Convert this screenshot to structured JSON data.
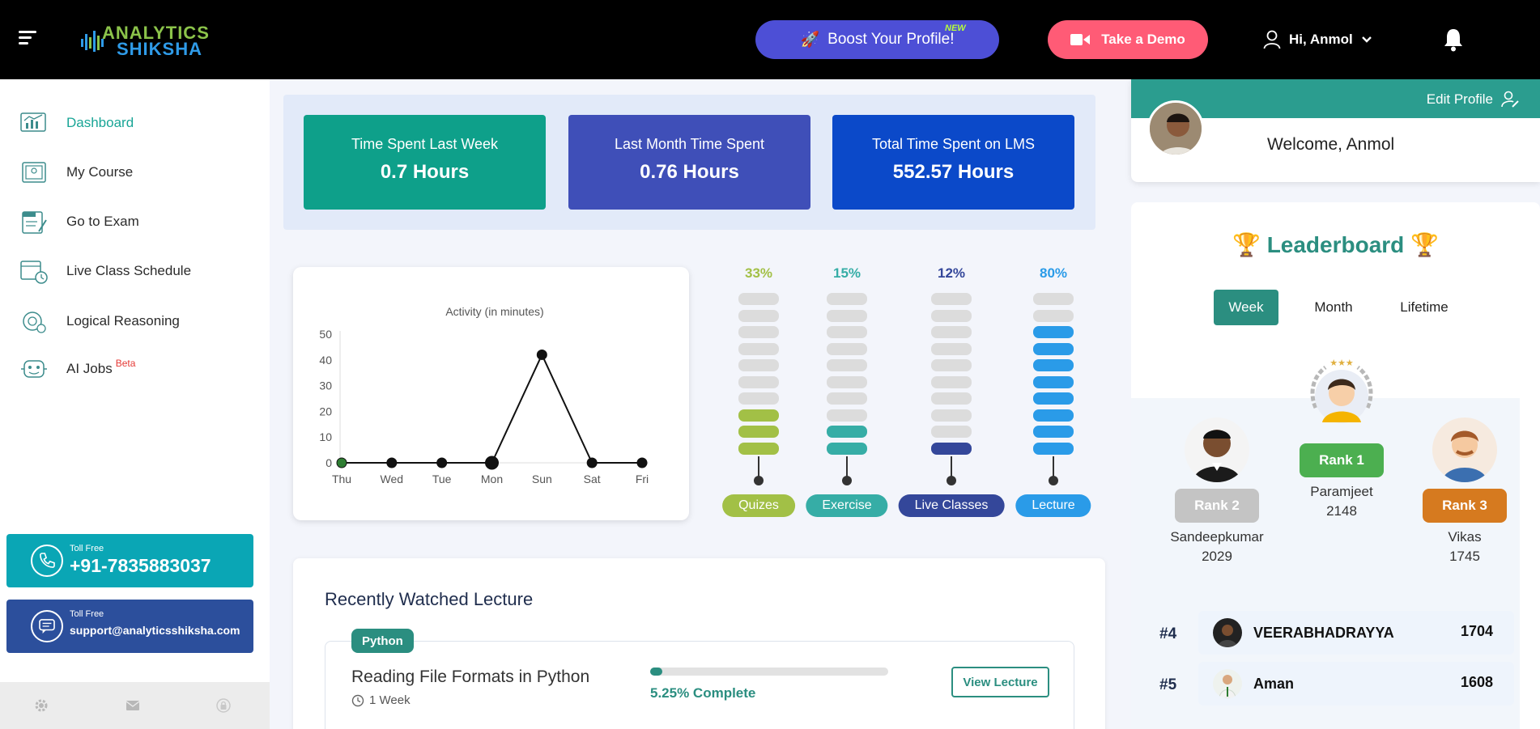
{
  "header": {
    "logo_line1": "ANALYTICS",
    "logo_line2": "SHIKSHA",
    "boost_label": "Boost Your Profile!",
    "boost_icon": "🚀",
    "new_badge": "NEW",
    "demo_label": "Take a Demo",
    "greeting": "Hi, Anmol"
  },
  "sidebar": {
    "items": [
      {
        "label": "Dashboard",
        "icon": "dashboard-icon"
      },
      {
        "label": "My Course",
        "icon": "course-icon"
      },
      {
        "label": "Go to Exam",
        "icon": "exam-icon"
      },
      {
        "label": "Live Class Schedule",
        "icon": "calendar-icon"
      },
      {
        "label": "Logical Reasoning",
        "icon": "brain-icon"
      },
      {
        "label": "AI Jobs",
        "icon": "robot-icon",
        "badge": "Beta"
      }
    ],
    "phone": {
      "small": "Toll Free",
      "value": "+91-7835883037"
    },
    "mail": {
      "small": "Toll Free",
      "value": "support@analyticsshiksha.com"
    }
  },
  "time_stats": [
    {
      "title": "Time Spent Last Week",
      "value": "0.7 Hours",
      "color": "#0ea08a"
    },
    {
      "title": "Last Month Time Spent",
      "value": "0.76 Hours",
      "color": "#3f4fb8"
    },
    {
      "title": "Total Time Spent on LMS",
      "value": "552.57 Hours",
      "color": "#0b49c9"
    }
  ],
  "chart_data": {
    "type": "line",
    "title": "Activity (in minutes)",
    "categories": [
      "Thu",
      "Wed",
      "Tue",
      "Mon",
      "Sun",
      "Sat",
      "Fri"
    ],
    "values": [
      0,
      0,
      0,
      0,
      42,
      0,
      0
    ],
    "ylim": [
      0,
      50
    ],
    "yticks": [
      0,
      10,
      20,
      30,
      40,
      50
    ],
    "grid": false
  },
  "progress": [
    {
      "label": "Quizes",
      "percent": "33%",
      "filled": 3,
      "color": "#a2c046"
    },
    {
      "label": "Exercise",
      "percent": "15%",
      "filled": 2,
      "color": "#36ada6"
    },
    {
      "label": "Live Classes",
      "percent": "12%",
      "filled": 1,
      "color": "#34479a"
    },
    {
      "label": "Lecture",
      "percent": "80%",
      "filled": 8,
      "color": "#2a9be8"
    }
  ],
  "recent": {
    "title": "Recently Watched Lecture",
    "tag": "Python",
    "name": "Reading File Formats in Python",
    "duration": "1 Week",
    "progress_text": "5.25% Complete",
    "progress_value": 5.25,
    "button": "View Lecture"
  },
  "profile": {
    "edit_label": "Edit Profile",
    "welcome": "Welcome, Anmol"
  },
  "leaderboard": {
    "title": "Leaderboard",
    "trophy": "🏆",
    "tabs": [
      "Week",
      "Month",
      "Lifetime"
    ],
    "podium": [
      {
        "rank": "Rank 2",
        "name": "Sandeepkumar",
        "points": "2029",
        "color": "#c4c4c4"
      },
      {
        "rank": "Rank 1",
        "name": "Paramjeet",
        "points": "2148",
        "color": "#4caf50"
      },
      {
        "rank": "Rank 3",
        "name": "Vikas",
        "points": "1745",
        "color": "#d67a1f"
      }
    ],
    "rows": [
      {
        "pos": "#4",
        "name": "VEERABHADRAYYA",
        "points": "1704"
      },
      {
        "pos": "#5",
        "name": "Aman",
        "points": "1608"
      }
    ]
  }
}
